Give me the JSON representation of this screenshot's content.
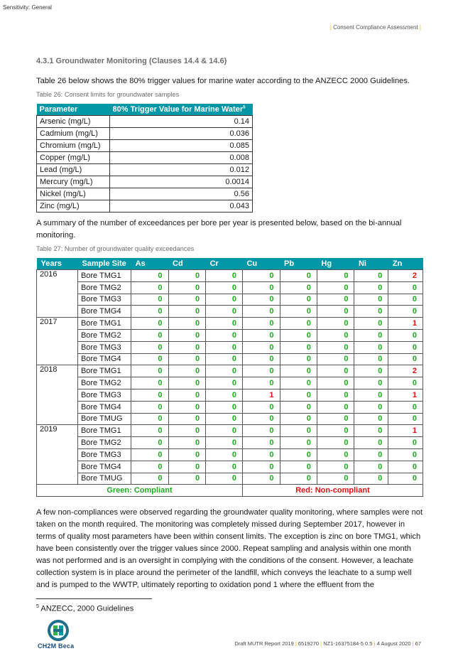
{
  "sensitivity": "Sensitivity: General",
  "header": "Consent Compliance Assessment",
  "section_heading": "4.3.1  Groundwater Monitoring (Clauses 14.4 & 14.6)",
  "para1": "Table 26 below shows the 80% trigger values for marine water according to the ANZECC 2000 Guidelines.",
  "table26": {
    "caption": "Table 26: Consent limits for groundwater samples",
    "headers": [
      "Parameter",
      "80% Trigger Value for Marine Water"
    ],
    "header_sup": "5",
    "rows": [
      [
        "Arsenic (mg/L)",
        "0.14"
      ],
      [
        "Cadmium (mg/L)",
        "0.036"
      ],
      [
        "Chromium (mg/L)",
        "0.085"
      ],
      [
        "Copper (mg/L)",
        "0.008"
      ],
      [
        "Lead (mg/L)",
        "0.012"
      ],
      [
        "Mercury (mg/L)",
        "0.0014"
      ],
      [
        "Nickel (mg/L)",
        "0.56"
      ],
      [
        "Zinc (mg/L)",
        "0.043"
      ]
    ]
  },
  "para2": "A summary of the number of exceedances per bore per year is presented below, based on the bi-annual monitoring.",
  "table27": {
    "caption": "Table 27: Number of groundwater quality exceedances",
    "headers": [
      "Years",
      "Sample Site",
      "As",
      "Cd",
      "Cr",
      "Cu",
      "Pb",
      "Hg",
      "Ni",
      "Zn"
    ],
    "rows": [
      [
        "2016",
        "Bore TMG1",
        "0",
        "0",
        "0",
        "0",
        "0",
        "0",
        "0",
        "2"
      ],
      [
        "",
        "Bore TMG2",
        "0",
        "0",
        "0",
        "0",
        "0",
        "0",
        "0",
        "0"
      ],
      [
        "",
        "Bore TMG3",
        "0",
        "0",
        "0",
        "0",
        "0",
        "0",
        "0",
        "0"
      ],
      [
        "",
        "Bore TMG4",
        "0",
        "0",
        "0",
        "0",
        "0",
        "0",
        "0",
        "0"
      ],
      [
        "2017",
        "Bore TMG1",
        "0",
        "0",
        "0",
        "0",
        "0",
        "0",
        "0",
        "1"
      ],
      [
        "",
        "Bore TMG2",
        "0",
        "0",
        "0",
        "0",
        "0",
        "0",
        "0",
        "0"
      ],
      [
        "",
        "Bore TMG3",
        "0",
        "0",
        "0",
        "0",
        "0",
        "0",
        "0",
        "0"
      ],
      [
        "",
        "Bore TMG4",
        "0",
        "0",
        "0",
        "0",
        "0",
        "0",
        "0",
        "0"
      ],
      [
        "2018",
        "Bore TMG1",
        "0",
        "0",
        "0",
        "0",
        "0",
        "0",
        "0",
        "2"
      ],
      [
        "",
        "Bore TMG2",
        "0",
        "0",
        "0",
        "0",
        "0",
        "0",
        "0",
        "0"
      ],
      [
        "",
        "Bore TMG3",
        "0",
        "0",
        "0",
        "1",
        "0",
        "0",
        "0",
        "1"
      ],
      [
        "",
        "Bore TMG4",
        "0",
        "0",
        "0",
        "0",
        "0",
        "0",
        "0",
        "0"
      ],
      [
        "",
        "Bore TMUG",
        "0",
        "0",
        "0",
        "0",
        "0",
        "0",
        "0",
        "0"
      ],
      [
        "2019",
        "Bore TMG1",
        "0",
        "0",
        "0",
        "0",
        "0",
        "0",
        "0",
        "1"
      ],
      [
        "",
        "Bore TMG2",
        "0",
        "0",
        "0",
        "0",
        "0",
        "0",
        "0",
        "0"
      ],
      [
        "",
        "Bore TMG3",
        "0",
        "0",
        "0",
        "0",
        "0",
        "0",
        "0",
        "0"
      ],
      [
        "",
        "Bore TMG4",
        "0",
        "0",
        "0",
        "0",
        "0",
        "0",
        "0",
        "0"
      ],
      [
        "",
        "Bore TMUG",
        "0",
        "0",
        "0",
        "0",
        "0",
        "0",
        "0",
        "0"
      ]
    ],
    "year_spans": {
      "2016": 4,
      "2017": 4,
      "2018": 5,
      "2019": 5
    },
    "legend_green": "Green: Compliant",
    "legend_red": "Red: Non-compliant"
  },
  "para3": "A few non-compliances were observed regarding the groundwater quality monitoring, where samples were not taken on the month required. The monitoring was completely missed during September 2017, however in terms of quality most parameters have been within consent limits. The exception is zinc on bore TMG1, which have been consistently over the trigger values since 2000. Repeat sampling and analysis within one month was not performed and is an oversight in complying with the conditions of the consent. However, a leachate collection system is in place around the perimeter of the landfill, which conveys the leachate to a sump well and is pumped to the WWTP, ultimately reporting to oxidation pond 1 where the effluent from the",
  "footnote_num": "5",
  "footnote": "ANZECC, 2000 Guidelines",
  "logo_text": "CH2M Beca",
  "footer": {
    "doc": "Draft MUTR Report 2019",
    "num": "6519270",
    "ref": "NZ1-16375184-5 0.5",
    "date": "4 August 2020",
    "page": "67"
  },
  "colors": {
    "teal": "#0097a7",
    "green": "#22a822",
    "red": "#e01010",
    "accent": "#f0b400"
  }
}
